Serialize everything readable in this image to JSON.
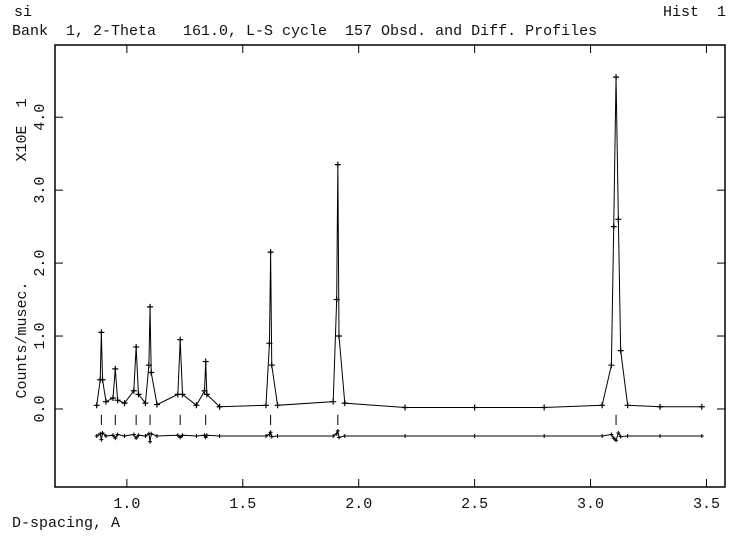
{
  "chart_data": {
    "type": "line",
    "header_left": "si",
    "header_right": "Hist  1",
    "title": "Bank  1, 2-Theta   161.0, L-S cycle  157 Obsd. and Diff. Profiles",
    "y_label": "Counts/musec.",
    "y_scale_label": "X10E  1",
    "x_label": "D-spacing, A",
    "xlim": [
      0.69,
      3.58
    ],
    "ylim": [
      -1.07,
      4.99
    ],
    "xticks": [
      {
        "value": 1,
        "label": "1.0"
      },
      {
        "value": 1.5,
        "label": "1.5"
      },
      {
        "value": 2,
        "label": "2.0"
      },
      {
        "value": 2.5,
        "label": "2.5"
      },
      {
        "value": 3,
        "label": "3.0"
      },
      {
        "value": 3.5,
        "label": "3.5"
      }
    ],
    "yticks": [
      {
        "value": 0,
        "label": "0.0"
      },
      {
        "value": 1,
        "label": "1.0"
      },
      {
        "value": 2,
        "label": "2.0"
      },
      {
        "value": 3,
        "label": "3.0"
      },
      {
        "value": 4,
        "label": "4.0"
      }
    ],
    "x": [
      0.87,
      0.885,
      0.89,
      0.895,
      0.91,
      0.94,
      0.95,
      0.96,
      0.99,
      1.03,
      1.04,
      1.05,
      1.08,
      1.095,
      1.1,
      1.105,
      1.13,
      1.22,
      1.23,
      1.24,
      1.3,
      1.335,
      1.34,
      1.345,
      1.4,
      1.6,
      1.615,
      1.62,
      1.625,
      1.65,
      1.89,
      1.905,
      1.91,
      1.915,
      1.94,
      2.2,
      2.5,
      2.8,
      3.05,
      3.09,
      3.1,
      3.11,
      3.12,
      3.13,
      3.16,
      3.3,
      3.48
    ],
    "series": [
      {
        "color": "#000000",
        "values": [
          0.05,
          0.4,
          1.05,
          0.4,
          0.1,
          0.15,
          0.55,
          0.12,
          0.08,
          0.25,
          0.85,
          0.2,
          0.08,
          0.6,
          1.4,
          0.5,
          0.06,
          0.2,
          0.95,
          0.2,
          0.05,
          0.25,
          0.65,
          0.2,
          0.03,
          0.05,
          0.9,
          2.15,
          0.6,
          0.05,
          0.1,
          1.5,
          3.35,
          1.0,
          0.08,
          0.02,
          0.02,
          0.02,
          0.05,
          0.6,
          2.5,
          4.55,
          2.6,
          0.8,
          0.05,
          0.03,
          0.03
        ]
      },
      {
        "color": "#000000",
        "values": [
          -0.37,
          -0.34,
          -0.42,
          -0.33,
          -0.37,
          -0.36,
          -0.4,
          -0.35,
          -0.37,
          -0.35,
          -0.4,
          -0.36,
          -0.37,
          -0.34,
          -0.45,
          -0.34,
          -0.37,
          -0.36,
          -0.39,
          -0.36,
          -0.37,
          -0.36,
          -0.39,
          -0.36,
          -0.37,
          -0.37,
          -0.35,
          -0.32,
          -0.38,
          -0.37,
          -0.37,
          -0.34,
          -0.3,
          -0.39,
          -0.37,
          -0.37,
          -0.37,
          -0.37,
          -0.37,
          -0.35,
          -0.4,
          -0.43,
          -0.33,
          -0.38,
          -0.37,
          -0.37,
          -0.37
        ]
      }
    ],
    "reflections": [
      0.89,
      0.95,
      1.04,
      1.1,
      1.23,
      1.34,
      1.62,
      1.91,
      3.11
    ],
    "reflection_band": [
      -0.08,
      -0.22
    ]
  }
}
